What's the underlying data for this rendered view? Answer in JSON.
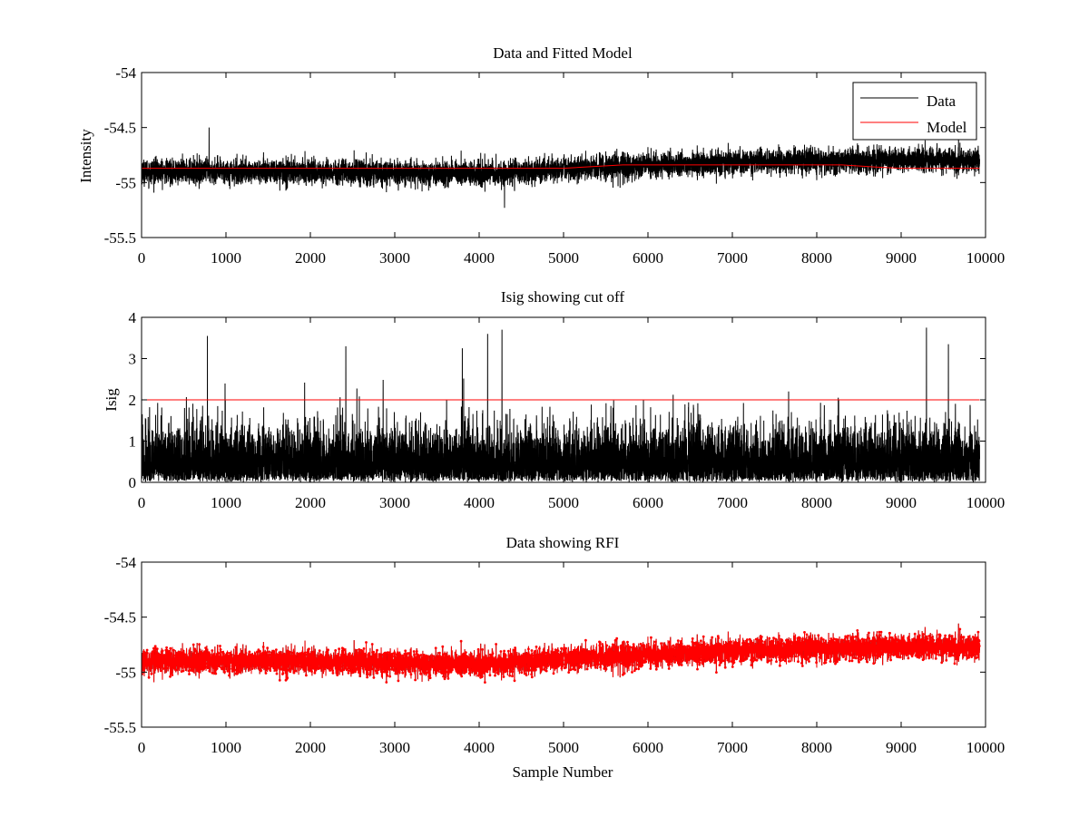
{
  "chart_data": [
    {
      "type": "line",
      "title": "Data and Fitted Model",
      "xlabel": "",
      "ylabel": "Intensity",
      "xlim": [
        0,
        10000
      ],
      "ylim": [
        -55.5,
        -54
      ],
      "xticks": [
        0,
        1000,
        2000,
        3000,
        4000,
        5000,
        6000,
        7000,
        8000,
        9000,
        10000
      ],
      "xtick_labels": [
        "0",
        "1000",
        "2000",
        "3000",
        "4000",
        "5000",
        "6000",
        "7000",
        "8000",
        "9000",
        "10000"
      ],
      "yticks": [
        -55.5,
        -55,
        -54.5,
        -54
      ],
      "ytick_labels": [
        "-55.5",
        "-55",
        "-54.5",
        "-54"
      ],
      "grid": false,
      "legend": {
        "position": "top-right",
        "entries": [
          "Data",
          "Model"
        ]
      },
      "series": [
        {
          "name": "Data",
          "color": "#000000",
          "style": "line",
          "n_points": 9930,
          "x_range": [
            0,
            9930
          ],
          "trend_x": [
            0,
            2000,
            4000,
            5000,
            6000,
            8000,
            9930
          ],
          "trend_y": [
            -54.9,
            -54.9,
            -54.92,
            -54.88,
            -54.84,
            -54.8,
            -54.8
          ],
          "noise_band": 0.1,
          "max_excursion": {
            "x": 800,
            "y": -54.5
          },
          "min_excursion": {
            "x": 4300,
            "y": -55.23
          }
        },
        {
          "name": "Model",
          "color": "#ff0000",
          "style": "line",
          "x": [
            0,
            5000,
            5700,
            8300,
            8700,
            9000,
            9930
          ],
          "y": [
            -54.87,
            -54.87,
            -54.84,
            -54.84,
            -54.86,
            -54.87,
            -54.87
          ]
        }
      ]
    },
    {
      "type": "line",
      "title": "Isig showing cut off",
      "xlabel": "",
      "ylabel": "Isig",
      "xlim": [
        0,
        10000
      ],
      "ylim": [
        0,
        4
      ],
      "xticks": [
        0,
        1000,
        2000,
        3000,
        4000,
        5000,
        6000,
        7000,
        8000,
        9000,
        10000
      ],
      "xtick_labels": [
        "0",
        "1000",
        "2000",
        "3000",
        "4000",
        "5000",
        "6000",
        "7000",
        "8000",
        "9000",
        "10000"
      ],
      "yticks": [
        0,
        1,
        2,
        3,
        4
      ],
      "ytick_labels": [
        "0",
        "1",
        "2",
        "3",
        "4"
      ],
      "grid": false,
      "series": [
        {
          "color": "#000000",
          "style": "line",
          "n_points": 9930,
          "x_range": [
            0,
            9930
          ],
          "typical_max": 1.6,
          "spikes": [
            {
              "x": 780,
              "y": 3.55
            },
            {
              "x": 2420,
              "y": 3.3
            },
            {
              "x": 3800,
              "y": 3.25
            },
            {
              "x": 4270,
              "y": 3.7
            },
            {
              "x": 4100,
              "y": 3.6
            },
            {
              "x": 9300,
              "y": 3.75
            },
            {
              "x": 9560,
              "y": 3.35
            }
          ]
        },
        {
          "color": "#ff0000",
          "style": "line",
          "x": [
            0,
            9930
          ],
          "y": [
            2,
            2
          ]
        }
      ]
    },
    {
      "type": "scatter",
      "title": "Data showing RFI",
      "xlabel": "Sample Number",
      "ylabel": "",
      "xlim": [
        0,
        10000
      ],
      "ylim": [
        -55.5,
        -54
      ],
      "xticks": [
        0,
        1000,
        2000,
        3000,
        4000,
        5000,
        6000,
        7000,
        8000,
        9000,
        10000
      ],
      "xtick_labels": [
        "0",
        "1000",
        "2000",
        "3000",
        "4000",
        "5000",
        "6000",
        "7000",
        "8000",
        "9000",
        "10000"
      ],
      "yticks": [
        -55.5,
        -55,
        -54.5,
        -54
      ],
      "ytick_labels": [
        "-55.5",
        "-55",
        "-54.5",
        "-54"
      ],
      "grid": false,
      "series": [
        {
          "color": "#000000",
          "style": "line",
          "n_points": 9930,
          "x_range": [
            0,
            9930
          ],
          "trend_x": [
            0,
            2000,
            4000,
            5000,
            6000,
            8000,
            9930
          ],
          "trend_y": [
            -54.9,
            -54.9,
            -54.93,
            -54.88,
            -54.84,
            -54.78,
            -54.77
          ],
          "noise_band": 0.1
        },
        {
          "color": "#ff0000",
          "style": "line-with-dot-markers",
          "n_points": 9930,
          "x_range": [
            0,
            9930
          ],
          "trend_x": [
            0,
            2000,
            4000,
            5000,
            6000,
            8000,
            9930
          ],
          "trend_y": [
            -54.9,
            -54.9,
            -54.93,
            -54.88,
            -54.84,
            -54.78,
            -54.77
          ],
          "noise_band": 0.1
        }
      ]
    }
  ]
}
